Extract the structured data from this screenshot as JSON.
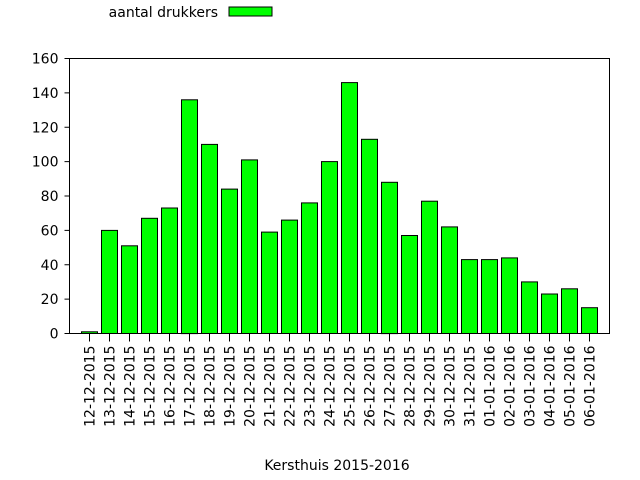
{
  "chart_data": {
    "type": "bar",
    "xlabel": "Kersthuis 2015-2016",
    "ylabel": "",
    "ylim": [
      0,
      160
    ],
    "yticks": [
      0,
      20,
      40,
      60,
      80,
      100,
      120,
      140,
      160
    ],
    "legend_position": "top-left",
    "grid": false,
    "series": [
      {
        "name": "aantal drukkers",
        "color": "#00ff00",
        "values": [
          1,
          60,
          51,
          67,
          73,
          136,
          110,
          84,
          101,
          59,
          66,
          76,
          100,
          146,
          113,
          88,
          57,
          77,
          62,
          43,
          43,
          44,
          30,
          23,
          26,
          15
        ]
      }
    ],
    "categories": [
      "12-12-2015",
      "13-12-2015",
      "14-12-2015",
      "15-12-2015",
      "16-12-2015",
      "17-12-2015",
      "18-12-2015",
      "19-12-2015",
      "20-12-2015",
      "21-12-2015",
      "22-12-2015",
      "23-12-2015",
      "24-12-2015",
      "25-12-2015",
      "26-12-2015",
      "27-12-2015",
      "28-12-2015",
      "29-12-2015",
      "30-12-2015",
      "31-12-2015",
      "01-01-2016",
      "02-01-2016",
      "03-01-2016",
      "04-01-2016",
      "05-01-2016",
      "06-01-2016"
    ]
  }
}
